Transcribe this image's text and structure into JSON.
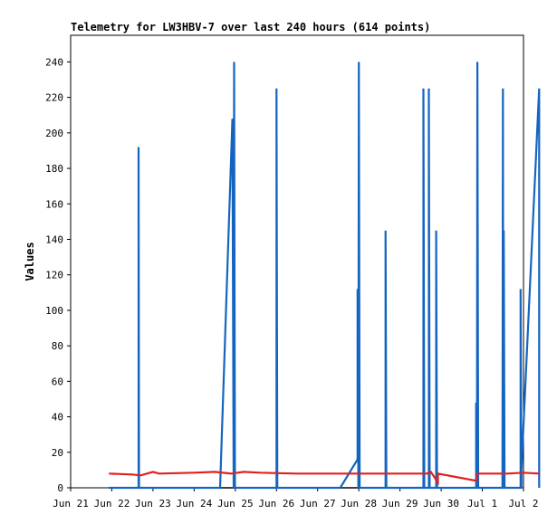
{
  "chart_data": {
    "type": "line",
    "title": "Telemetry for LW3HBV-7 over last 240 hours (614 points)",
    "xlabel": "",
    "ylabel": "Values",
    "x_ticks": [
      "Jun 21",
      "Jun 22",
      "Jun 23",
      "Jun 24",
      "Jun 25",
      "Jun 26",
      "Jun 27",
      "Jun 28",
      "Jun 29",
      "Jun 30",
      "Jul 1",
      "Jul 2"
    ],
    "xlim_days": [
      0,
      11
    ],
    "y_ticks": [
      0,
      20,
      40,
      60,
      80,
      100,
      120,
      140,
      160,
      180,
      200,
      220,
      240
    ],
    "ylim": [
      0,
      255
    ],
    "grid": false,
    "legend": "none",
    "series": [
      {
        "color": "#000000",
        "points": [
          [
            0.93,
            0
          ],
          [
            10.4,
            0
          ]
        ]
      },
      {
        "color": "#1565c0",
        "points": [
          [
            0.93,
            0
          ],
          [
            1.65,
            0
          ],
          [
            1.65,
            192
          ],
          [
            1.66,
            0
          ],
          [
            3.63,
            0
          ],
          [
            3.93,
            208
          ],
          [
            3.96,
            0
          ],
          [
            3.97,
            240
          ],
          [
            3.99,
            0
          ],
          [
            5.0,
            0
          ],
          [
            5.0,
            225
          ],
          [
            5.02,
            0
          ],
          [
            6.55,
            0
          ],
          [
            6.97,
            16
          ],
          [
            6.97,
            112
          ],
          [
            6.99,
            0
          ],
          [
            7.0,
            240
          ],
          [
            7.02,
            0
          ],
          [
            7.65,
            0
          ],
          [
            7.65,
            145
          ],
          [
            7.67,
            0
          ],
          [
            8.57,
            0
          ],
          [
            8.57,
            225
          ],
          [
            8.59,
            0
          ],
          [
            8.7,
            0
          ],
          [
            8.7,
            225
          ],
          [
            8.72,
            0
          ],
          [
            8.88,
            0
          ],
          [
            8.88,
            145
          ],
          [
            8.9,
            0
          ],
          [
            9.85,
            0
          ],
          [
            9.85,
            48
          ],
          [
            9.87,
            0
          ],
          [
            9.88,
            240
          ],
          [
            9.9,
            0
          ],
          [
            10.49,
            0
          ],
          [
            10.5,
            225
          ],
          [
            10.51,
            0
          ],
          [
            10.52,
            145
          ],
          [
            10.54,
            0
          ],
          [
            10.93,
            0
          ],
          [
            10.93,
            112
          ],
          [
            10.95,
            0
          ],
          [
            10.95,
            10
          ],
          [
            11.38,
            225
          ],
          [
            11.38,
            0
          ]
        ]
      },
      {
        "color": "#e02020",
        "points": [
          [
            0.93,
            8
          ],
          [
            1.5,
            7.5
          ],
          [
            1.7,
            7
          ],
          [
            2.0,
            9
          ],
          [
            2.15,
            8
          ],
          [
            3.0,
            8.5
          ],
          [
            3.5,
            9
          ],
          [
            3.9,
            8
          ],
          [
            4.2,
            9
          ],
          [
            4.6,
            8.5
          ],
          [
            5.5,
            8
          ],
          [
            6.5,
            8
          ],
          [
            7.5,
            8
          ],
          [
            8.3,
            8
          ],
          [
            8.65,
            8
          ],
          [
            8.75,
            9
          ],
          [
            8.92,
            3
          ],
          [
            8.92,
            8
          ],
          [
            9.85,
            4
          ],
          [
            9.88,
            8
          ],
          [
            10.6,
            8
          ],
          [
            11.0,
            8.5
          ],
          [
            11.38,
            8
          ]
        ]
      }
    ]
  }
}
